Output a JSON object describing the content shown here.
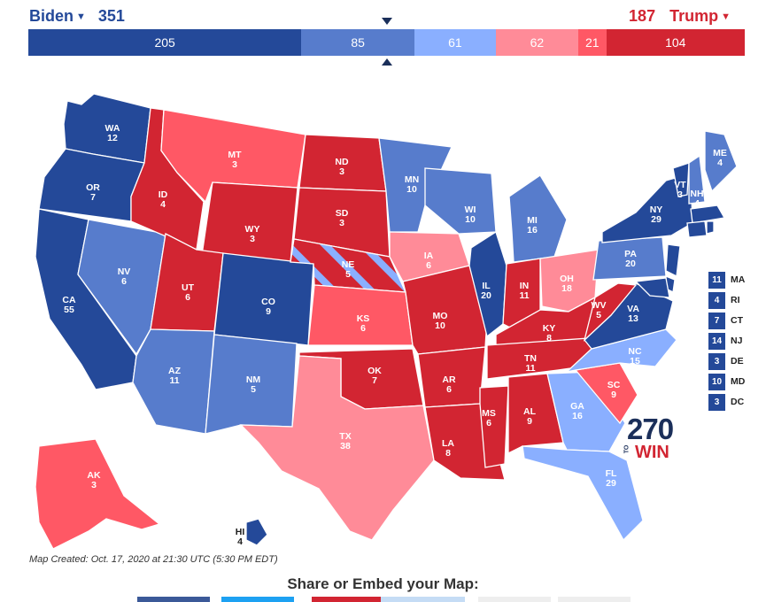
{
  "header": {
    "biden": {
      "name": "Biden",
      "total": "351"
    },
    "trump": {
      "name": "Trump",
      "total": "187"
    },
    "bar": [
      {
        "value": "205",
        "color": "#244999",
        "weight": 205
      },
      {
        "value": "85",
        "color": "#577ccc",
        "weight": 85
      },
      {
        "value": "61",
        "color": "#8aafff",
        "weight": 61
      },
      {
        "value": "62",
        "color": "#ff8b98",
        "weight": 62
      },
      {
        "value": "21",
        "color": "#ff5865",
        "weight": 21
      },
      {
        "value": "104",
        "color": "#d22532",
        "weight": 104
      }
    ]
  },
  "colors": {
    "safe_dem": "#244999",
    "likely_dem": "#577ccc",
    "lean_dem": "#8aafff",
    "lean_rep": "#ff8b98",
    "likely_rep": "#ff5865",
    "safe_rep": "#d22532"
  },
  "states": {
    "WA": {
      "abbr": "WA",
      "votes": "12"
    },
    "OR": {
      "abbr": "OR",
      "votes": "7"
    },
    "CA": {
      "abbr": "CA",
      "votes": "55"
    },
    "NV": {
      "abbr": "NV",
      "votes": "6"
    },
    "ID": {
      "abbr": "ID",
      "votes": "4"
    },
    "MT": {
      "abbr": "MT",
      "votes": "3"
    },
    "WY": {
      "abbr": "WY",
      "votes": "3"
    },
    "UT": {
      "abbr": "UT",
      "votes": "6"
    },
    "AZ": {
      "abbr": "AZ",
      "votes": "11"
    },
    "CO": {
      "abbr": "CO",
      "votes": "9"
    },
    "NM": {
      "abbr": "NM",
      "votes": "5"
    },
    "ND": {
      "abbr": "ND",
      "votes": "3"
    },
    "SD": {
      "abbr": "SD",
      "votes": "3"
    },
    "NE": {
      "abbr": "NE",
      "votes": "5"
    },
    "KS": {
      "abbr": "KS",
      "votes": "6"
    },
    "OK": {
      "abbr": "OK",
      "votes": "7"
    },
    "TX": {
      "abbr": "TX",
      "votes": "38"
    },
    "MN": {
      "abbr": "MN",
      "votes": "10"
    },
    "IA": {
      "abbr": "IA",
      "votes": "6"
    },
    "MO": {
      "abbr": "MO",
      "votes": "10"
    },
    "AR": {
      "abbr": "AR",
      "votes": "6"
    },
    "LA": {
      "abbr": "LA",
      "votes": "8"
    },
    "WI": {
      "abbr": "WI",
      "votes": "10"
    },
    "IL": {
      "abbr": "IL",
      "votes": "20"
    },
    "MI": {
      "abbr": "MI",
      "votes": "16"
    },
    "IN": {
      "abbr": "IN",
      "votes": "11"
    },
    "OH": {
      "abbr": "OH",
      "votes": "18"
    },
    "KY": {
      "abbr": "KY",
      "votes": "8"
    },
    "TN": {
      "abbr": "TN",
      "votes": "11"
    },
    "MS": {
      "abbr": "MS",
      "votes": "6"
    },
    "AL": {
      "abbr": "AL",
      "votes": "9"
    },
    "GA": {
      "abbr": "GA",
      "votes": "16"
    },
    "FL": {
      "abbr": "FL",
      "votes": "29"
    },
    "SC": {
      "abbr": "SC",
      "votes": "9"
    },
    "NC": {
      "abbr": "NC",
      "votes": "15"
    },
    "VA": {
      "abbr": "VA",
      "votes": "13"
    },
    "WV": {
      "abbr": "WV",
      "votes": "5"
    },
    "PA": {
      "abbr": "PA",
      "votes": "20"
    },
    "NY": {
      "abbr": "NY",
      "votes": "29"
    },
    "VT": {
      "abbr": "VT",
      "votes": "3"
    },
    "NH": {
      "abbr": "NH",
      "votes": "4"
    },
    "ME": {
      "abbr": "ME",
      "votes": "4"
    },
    "AK": {
      "abbr": "AK",
      "votes": "3"
    },
    "HI": {
      "abbr": "HI",
      "votes": "4"
    }
  },
  "small_states": [
    {
      "votes": "11",
      "abbr": "MA"
    },
    {
      "votes": "4",
      "abbr": "RI"
    },
    {
      "votes": "7",
      "abbr": "CT"
    },
    {
      "votes": "14",
      "abbr": "NJ"
    },
    {
      "votes": "3",
      "abbr": "DE"
    },
    {
      "votes": "10",
      "abbr": "MD"
    },
    {
      "votes": "3",
      "abbr": "DC"
    }
  ],
  "logo": {
    "number": "270",
    "to": "TO",
    "win": "WIN"
  },
  "caption": "Map Created: Oct. 17, 2020 at 21:30 UTC (5:30 PM EDT)",
  "share_title": "Share or Embed your Map:",
  "share_buttons": [
    {
      "color": "#3b5998"
    },
    {
      "color": "#1da1f2"
    },
    {
      "color": "#d22532"
    },
    {
      "color": "#c5dcf5"
    },
    {
      "color": "#eeeeee"
    },
    {
      "color": "#eeeeee"
    }
  ]
}
